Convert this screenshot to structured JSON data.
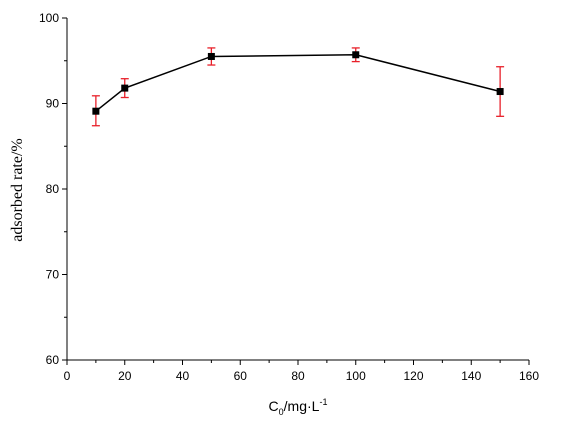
{
  "chart_data": {
    "type": "line",
    "xlabel": {
      "base": "C",
      "sub": "0",
      "mid": "/mg·L",
      "sup": "-1"
    },
    "ylabel": "adsorbed rate/%",
    "xlim": [
      0,
      160
    ],
    "ylim": [
      60,
      100
    ],
    "xticks": [
      "0",
      "20",
      "40",
      "60",
      "80",
      "100",
      "120",
      "140",
      "160"
    ],
    "yticks": [
      "60",
      "70",
      "80",
      "90",
      "100"
    ],
    "grid": false,
    "legend": "none",
    "colors": {
      "line": "#000000",
      "marker": "#000000",
      "errorbar": "#e8202a",
      "axis": "#000000"
    },
    "series": [
      {
        "x": [
          10,
          20,
          50,
          100,
          150
        ],
        "y": [
          89.1,
          91.8,
          95.5,
          95.7,
          91.4
        ],
        "err_low": [
          87.4,
          90.7,
          94.5,
          94.9,
          88.5
        ],
        "err_high": [
          90.9,
          92.9,
          96.5,
          96.5,
          94.3
        ]
      }
    ]
  }
}
